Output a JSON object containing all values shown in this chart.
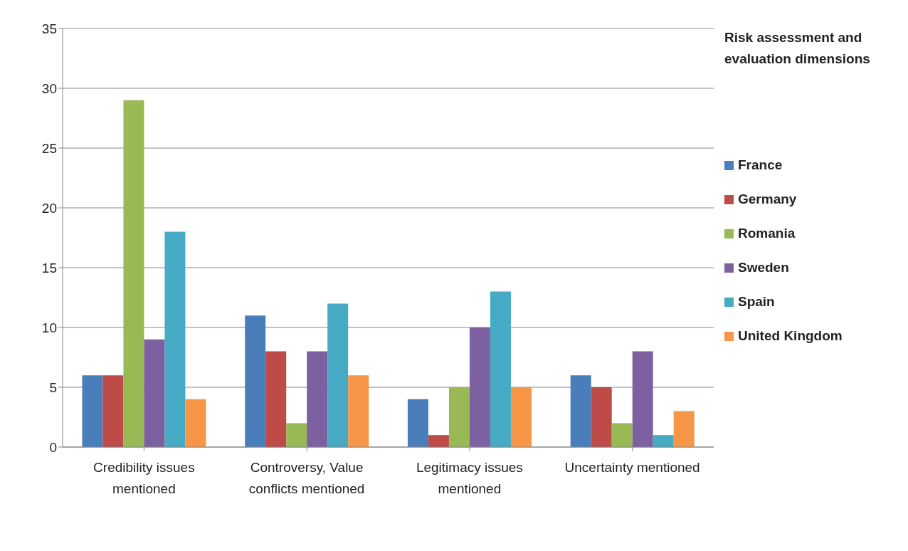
{
  "chart_data": {
    "type": "bar",
    "legend_title": "Risk assessment and evaluation dimensions",
    "categories": [
      "Credibility issues mentioned",
      "Controversy, Value conflicts mentioned",
      "Legitimacy issues mentioned",
      "Uncertainty mentioned"
    ],
    "series": [
      {
        "name": "France",
        "color": "#4a7ebb",
        "values": [
          6,
          11,
          4,
          6
        ]
      },
      {
        "name": "Germany",
        "color": "#be4b48",
        "values": [
          6,
          8,
          1,
          5
        ]
      },
      {
        "name": "Romania",
        "color": "#98b954",
        "values": [
          29,
          2,
          5,
          2
        ]
      },
      {
        "name": "Sweden",
        "color": "#7d60a0",
        "values": [
          9,
          8,
          10,
          8
        ]
      },
      {
        "name": "Spain",
        "color": "#46aac5",
        "values": [
          18,
          12,
          13,
          1
        ]
      },
      {
        "name": "United Kingdom",
        "color": "#f79646",
        "values": [
          4,
          6,
          5,
          3
        ]
      }
    ],
    "ylim": [
      0,
      35
    ],
    "yticks": [
      0,
      5,
      10,
      15,
      20,
      25,
      30,
      35
    ],
    "grid": "y",
    "legend": "right"
  }
}
